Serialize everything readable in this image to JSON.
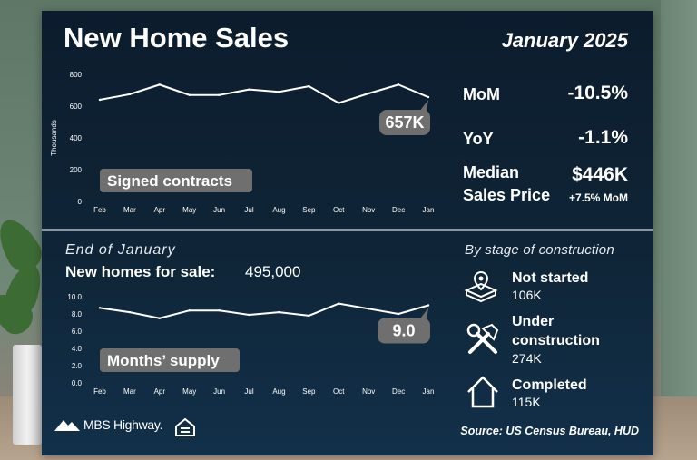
{
  "header": {
    "title": "New Home Sales",
    "date": "January 2025"
  },
  "stats": {
    "mom_label": "MoM",
    "mom_value": "-10.5%",
    "yoy_label": "YoY",
    "yoy_value": "-1.1%",
    "median_label_line1": "Median",
    "median_label_line2": "Sales Price",
    "median_value": "$446K",
    "median_sub": "+7.5% MoM"
  },
  "lower": {
    "end_label": "End of January",
    "forsale_label": "New homes for sale:",
    "forsale_value": "495,000",
    "stage_heading": "By stage of construction",
    "stages": [
      {
        "title": "Not started",
        "count": "106K",
        "icon": "map-pin-building-icon"
      },
      {
        "title_line1": "Under",
        "title_line2": "construction",
        "count": "274K",
        "icon": "hammer-wrench-icon"
      },
      {
        "title": "Completed",
        "count": "115K",
        "icon": "house-outline-icon"
      }
    ]
  },
  "footer": {
    "logo_text": "MBS Highway.",
    "source": "Source: US Census Bureau, HUD"
  },
  "colors": {
    "panel": "#0f2537",
    "line": "#ffffff",
    "tag": "#6f6f6f",
    "divider": "#8a98a6"
  },
  "chart_data": [
    {
      "type": "line",
      "ylabel": "Thousands",
      "ylim": [
        0,
        800
      ],
      "yticks": [
        "0",
        "200",
        "400",
        "600",
        "800"
      ],
      "categories": [
        "Feb",
        "Mar",
        "Apr",
        "May",
        "Jun",
        "Jul",
        "Aug",
        "Sep",
        "Oct",
        "Nov",
        "Dec",
        "Jan"
      ],
      "series": [
        {
          "name": "Signed contracts",
          "values": [
            640,
            675,
            735,
            670,
            670,
            705,
            690,
            725,
            620,
            680,
            735,
            657
          ]
        }
      ],
      "annotation": "657K",
      "grid": false
    },
    {
      "type": "line",
      "ylabel": "",
      "ylim": [
        0,
        10
      ],
      "yticks": [
        "0.0",
        "2.0",
        "4.0",
        "6.0",
        "8.0",
        "10.0"
      ],
      "categories": [
        "Feb",
        "Mar",
        "Apr",
        "May",
        "Jun",
        "Jul",
        "Aug",
        "Sep",
        "Oct",
        "Nov",
        "Dec",
        "Jan"
      ],
      "series": [
        {
          "name": "Months’ supply",
          "values": [
            8.7,
            8.2,
            7.5,
            8.4,
            8.4,
            7.9,
            8.2,
            7.8,
            9.2,
            8.6,
            8.0,
            9.0
          ]
        }
      ],
      "annotation": "9.0",
      "grid": false
    }
  ]
}
